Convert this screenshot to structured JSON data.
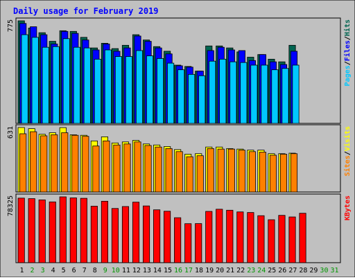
{
  "colors": {
    "frame": "#c0c0c0",
    "panel": "#c0c0c0",
    "title_text": "#0000ff",
    "hits": "#006450",
    "files": "#0000ff",
    "pages": "#00c8ff",
    "visits": "#ffff00",
    "sites": "#ff8000",
    "kbytes": "#ff0000",
    "weekday_label": "#000000",
    "weekend_label": "#009600"
  },
  "chart_data": {
    "type": "bar",
    "title": "Daily usage for February 2019",
    "days": [
      "1",
      "2",
      "3",
      "4",
      "5",
      "6",
      "7",
      "8",
      "9",
      "10",
      "11",
      "12",
      "13",
      "14",
      "15",
      "16",
      "17",
      "18",
      "19",
      "20",
      "21",
      "22",
      "23",
      "24",
      "25",
      "26",
      "27",
      "28",
      "29",
      "30",
      "31"
    ],
    "weekend_days": [
      "2",
      "3",
      "9",
      "10",
      "16",
      "17",
      "23",
      "24",
      "30",
      "31"
    ],
    "panels": [
      {
        "name": "hits-files-pages",
        "max_label": "775",
        "ymax": 775,
        "side_label": {
          "parts": [
            "Pages",
            "/",
            "Files",
            "/",
            "Hits"
          ],
          "colors": [
            "#00c8ff",
            "#000000",
            "#0000ff",
            "#000000",
            "#006450"
          ]
        },
        "series": [
          {
            "name": "Hits",
            "color": "#006450",
            "values": [
              775,
              720,
              685,
              620,
              700,
              695,
              650,
              570,
              605,
              565,
              590,
              670,
              630,
              580,
              545,
              440,
              430,
              395,
              585,
              585,
              570,
              540,
              500,
              520,
              485,
              465,
              590,
              0,
              0,
              0,
              0
            ]
          },
          {
            "name": "Files",
            "color": "#0000ff",
            "values": [
              755,
              730,
              670,
              600,
              695,
              680,
              630,
              555,
              600,
              545,
              570,
              660,
              620,
              570,
              525,
              435,
              425,
              395,
              550,
              575,
              555,
              550,
              475,
              520,
              465,
              445,
              545,
              0,
              0,
              0,
              0
            ]
          },
          {
            "name": "Pages",
            "color": "#00c8ff",
            "values": [
              670,
              650,
              575,
              580,
              640,
              575,
              570,
              485,
              555,
              505,
              505,
              550,
              510,
              490,
              455,
              405,
              370,
              360,
              470,
              485,
              465,
              460,
              440,
              440,
              405,
              415,
              440,
              0,
              0,
              0,
              0
            ]
          }
        ]
      },
      {
        "name": "visits-sites",
        "max_label": "631",
        "ymax": 631,
        "side_label": {
          "parts": [
            "Sites",
            "/",
            "Visits"
          ],
          "colors": [
            "#ff8000",
            "#000000",
            "#ffff00"
          ]
        },
        "series": [
          {
            "name": "Visits",
            "color": "#ffff00",
            "values": [
              631,
              620,
              565,
              580,
              630,
              560,
              555,
              500,
              540,
              480,
              490,
              505,
              470,
              460,
              445,
              415,
              370,
              375,
              440,
              440,
              425,
              420,
              410,
              410,
              375,
              375,
              380,
              0,
              0,
              0,
              0
            ]
          },
          {
            "name": "Sites",
            "color": "#ff8000",
            "values": [
              570,
              590,
              550,
              560,
              580,
              555,
              545,
              450,
              500,
              460,
              470,
              490,
              455,
              440,
              425,
              395,
              345,
              355,
              425,
              420,
              420,
              410,
              395,
              390,
              360,
              370,
              375,
              0,
              0,
              0,
              0
            ]
          }
        ]
      },
      {
        "name": "kbytes",
        "max_label": "78325",
        "ymax": 78325,
        "side_label": {
          "parts": [
            "KBytes"
          ],
          "colors": [
            "#ff0000"
          ]
        },
        "series": [
          {
            "name": "KBytes",
            "color": "#ff0000",
            "values": [
              76800,
              76200,
              74700,
              72300,
              78325,
              77100,
              76600,
              67200,
              73100,
              64500,
              66800,
              72000,
              67500,
              62900,
              61200,
              53500,
              46400,
              46500,
              61000,
              63600,
              62400,
              60400,
              59700,
              55900,
              51100,
              56300,
              54400,
              58800,
              0,
              0,
              0
            ]
          }
        ]
      }
    ]
  }
}
